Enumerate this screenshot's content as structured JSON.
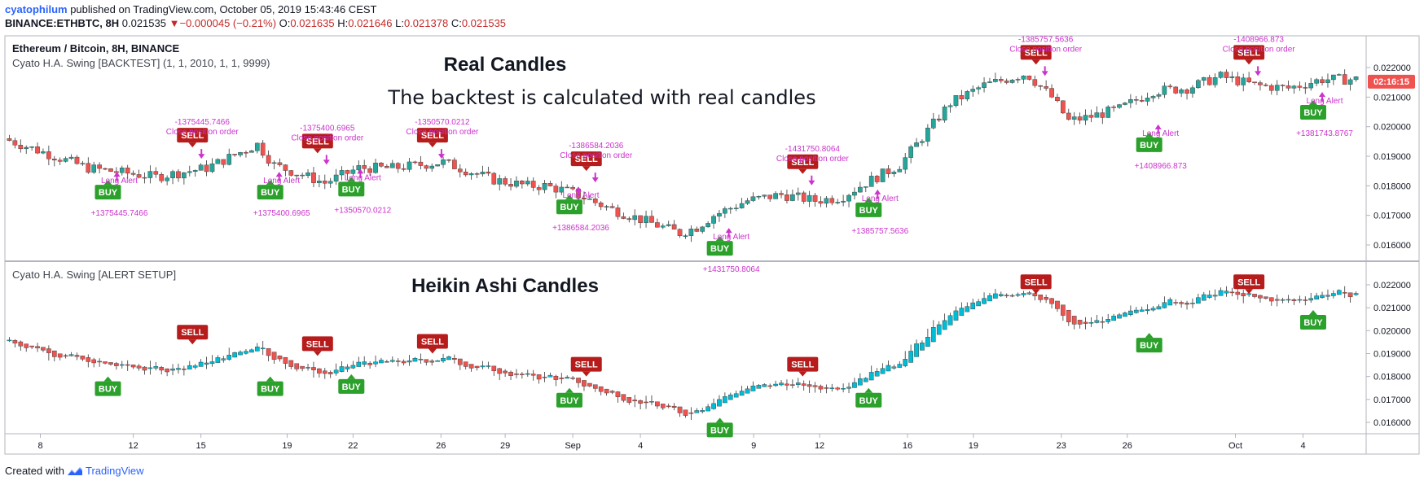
{
  "header": {
    "author": "cyatophilum",
    "published_text": "published on TradingView.com, October 05, 2019 15:43:46 CEST",
    "symbol": "BINANCE:ETHBTC, 8H",
    "last": "0.021535",
    "change": "−0.000045 (−0.21%)",
    "o_label": "O:",
    "o": "0.021635",
    "h_label": "H:",
    "h": "0.021646",
    "l_label": "L:",
    "l": "0.021378",
    "c_label": "C:",
    "c": "0.021535"
  },
  "footer": {
    "created_with": "Created with",
    "brand": "TradingView"
  },
  "colors": {
    "up": "#26a69a",
    "down": "#ef5350",
    "ha_up": "#00bcd4",
    "buy": "#2ba02b",
    "sell": "#b71c1c",
    "alert": "#cc33cc",
    "price_tag": "#ef5350"
  },
  "chart_data": [
    {
      "type": "candlestick",
      "name": "Real Candles",
      "instrument_title": "Ethereum / Bitcoin, 8H, BINANCE",
      "indicator_title": "Cyato H.A. Swing [BACKTEST] (1, 1, 2010, 1, 1, 9999)",
      "title": "Real Candles",
      "subtitle": "The backtest is calculated with real candles",
      "current_price_label": "02:16:15",
      "ylim": [
        0.0155,
        0.0226
      ],
      "y_ticks": [
        "0.016000",
        "0.017000",
        "0.018000",
        "0.019000",
        "0.020000",
        "0.021000",
        "0.022000"
      ],
      "price_path": [
        [
          0,
          0.0196
        ],
        [
          5,
          0.0186
        ],
        [
          9,
          0.0183
        ],
        [
          12,
          0.0186
        ],
        [
          15,
          0.0194
        ],
        [
          16,
          0.0187
        ],
        [
          19,
          0.0181
        ],
        [
          21,
          0.0186
        ],
        [
          23,
          0.0186
        ],
        [
          26,
          0.0188
        ],
        [
          29,
          0.0182
        ],
        [
          31,
          0.018
        ],
        [
          32,
          0.018
        ],
        [
          33.5,
          0.0178
        ],
        [
          36,
          0.0172
        ],
        [
          38,
          0.0168
        ],
        [
          40,
          0.0164
        ],
        [
          41,
          0.0166
        ],
        [
          42,
          0.017
        ],
        [
          44,
          0.0175
        ],
        [
          46,
          0.0177
        ],
        [
          48,
          0.0175
        ],
        [
          49.5,
          0.0176
        ],
        [
          51,
          0.0181
        ],
        [
          53,
          0.0187
        ],
        [
          56,
          0.0208
        ],
        [
          58,
          0.0214
        ],
        [
          60.5,
          0.0218
        ],
        [
          62,
          0.021
        ],
        [
          63,
          0.0202
        ],
        [
          64,
          0.0203
        ],
        [
          66,
          0.0206
        ],
        [
          68,
          0.0212
        ],
        [
          70,
          0.0213
        ],
        [
          72,
          0.0217
        ],
        [
          74,
          0.0214
        ],
        [
          76,
          0.0213
        ],
        [
          78,
          0.0216
        ]
      ],
      "signals": [
        {
          "type": "BUY",
          "x": 5.5,
          "price": 0.0182,
          "alert": "Long Alert",
          "pnl": "+1375445.7466"
        },
        {
          "type": "SELL",
          "x": 10.5,
          "price": 0.0193,
          "alert": "Close position order",
          "pnl": "-1375445.7466"
        },
        {
          "type": "BUY",
          "x": 15.1,
          "price": 0.0182,
          "alert": "Long Alert",
          "pnl": "+1375400.6965"
        },
        {
          "type": "SELL",
          "x": 17.9,
          "price": 0.0191,
          "alert": "Close position order",
          "pnl": "-1375400.6965"
        },
        {
          "type": "BUY",
          "x": 19.9,
          "price": 0.0183,
          "alert": "Long Alert",
          "pnl": "+1350570.0212"
        },
        {
          "type": "SELL",
          "x": 24.7,
          "price": 0.0193,
          "alert": "Close position order",
          "pnl": "-1350570.0212"
        },
        {
          "type": "BUY",
          "x": 32.8,
          "price": 0.0177,
          "alert": "Long Alert",
          "pnl": "+1386584.2036"
        },
        {
          "type": "SELL",
          "x": 33.8,
          "price": 0.0185,
          "alert": "Close position order",
          "pnl": "-1386584.2036"
        },
        {
          "type": "BUY",
          "x": 41.7,
          "price": 0.0163,
          "alert": "Long Alert",
          "pnl": "+1431750.8064"
        },
        {
          "type": "SELL",
          "x": 46.6,
          "price": 0.0184,
          "alert": "Close position order",
          "pnl": "-1431750.8064"
        },
        {
          "type": "BUY",
          "x": 50.5,
          "price": 0.0176,
          "alert": "Long Alert",
          "pnl": "+1385757.5636"
        },
        {
          "type": "SELL",
          "x": 60.4,
          "price": 0.0221,
          "alert": "Close position order",
          "pnl": "-1385757.5636"
        },
        {
          "type": "BUY",
          "x": 67.1,
          "price": 0.0198,
          "alert": "Long Alert",
          "pnl": "+1408966.873"
        },
        {
          "type": "SELL",
          "x": 73.0,
          "price": 0.0221,
          "alert": "Close position order",
          "pnl": "-1408966.873"
        },
        {
          "type": "BUY",
          "x": 76.8,
          "price": 0.0209,
          "alert": "Long Alert",
          "pnl": "+1381743.8767"
        }
      ]
    },
    {
      "type": "candlestick",
      "name": "Heikin Ashi Candles",
      "indicator_title": "Cyato H.A. Swing [ALERT SETUP]",
      "title": "Heikin Ashi Candles",
      "ylim": [
        0.0155,
        0.0226
      ],
      "y_ticks": [
        "0.016000",
        "0.017000",
        "0.018000",
        "0.019000",
        "0.020000",
        "0.021000",
        "0.022000"
      ],
      "signals": [
        {
          "type": "BUY",
          "x": 5.5,
          "price": 0.018
        },
        {
          "type": "SELL",
          "x": 10.5,
          "price": 0.0194
        },
        {
          "type": "BUY",
          "x": 15.1,
          "price": 0.018
        },
        {
          "type": "SELL",
          "x": 17.9,
          "price": 0.0189
        },
        {
          "type": "BUY",
          "x": 19.9,
          "price": 0.0181
        },
        {
          "type": "SELL",
          "x": 24.7,
          "price": 0.019
        },
        {
          "type": "SELL",
          "x": 33.8,
          "price": 0.018
        },
        {
          "type": "BUY",
          "x": 32.8,
          "price": 0.0175
        },
        {
          "type": "BUY",
          "x": 41.7,
          "price": 0.0162
        },
        {
          "type": "SELL",
          "x": 46.6,
          "price": 0.018
        },
        {
          "type": "BUY",
          "x": 50.5,
          "price": 0.0175
        },
        {
          "type": "SELL",
          "x": 60.4,
          "price": 0.0216
        },
        {
          "type": "BUY",
          "x": 67.1,
          "price": 0.0199
        },
        {
          "type": "SELL",
          "x": 73.0,
          "price": 0.0216
        },
        {
          "type": "BUY",
          "x": 76.8,
          "price": 0.0209
        }
      ]
    }
  ],
  "x_axis": {
    "ticks": [
      {
        "label": "8",
        "x": 1.5
      },
      {
        "label": "12",
        "x": 7
      },
      {
        "label": "15",
        "x": 11
      },
      {
        "label": "19",
        "x": 16.1
      },
      {
        "label": "22",
        "x": 20
      },
      {
        "label": "26",
        "x": 25.2
      },
      {
        "label": "29",
        "x": 29
      },
      {
        "label": "Sep",
        "x": 33
      },
      {
        "label": "4",
        "x": 37
      },
      {
        "label": "9",
        "x": 43.7
      },
      {
        "label": "12",
        "x": 47.6
      },
      {
        "label": "16",
        "x": 52.8
      },
      {
        "label": "19",
        "x": 56.7
      },
      {
        "label": "23",
        "x": 61.9
      },
      {
        "label": "26",
        "x": 65.8
      },
      {
        "label": "Oct",
        "x": 72.2
      },
      {
        "label": "4",
        "x": 76.2
      }
    ]
  }
}
